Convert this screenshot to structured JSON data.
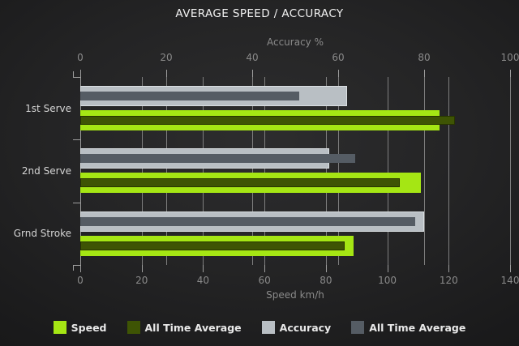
{
  "title": "AVERAGE SPEED / ACCURACY",
  "chart_data": {
    "type": "bar",
    "orientation": "horizontal",
    "title": "AVERAGE SPEED / ACCURACY",
    "categories": [
      "1st Serve",
      "2nd Serve",
      "Grnd Stroke"
    ],
    "axes": {
      "top": {
        "label": "Accuracy %",
        "range": [
          0,
          100
        ],
        "ticks": [
          0,
          20,
          40,
          60,
          80,
          100
        ]
      },
      "bottom": {
        "label": "Speed km/h",
        "range": [
          0,
          140
        ],
        "ticks": [
          0,
          20,
          40,
          60,
          80,
          100,
          120,
          140
        ]
      }
    },
    "grid": true,
    "legend_position": "bottom",
    "series": [
      {
        "name": "Speed",
        "axis": "bottom",
        "color": "#a5e614",
        "values": [
          117,
          111,
          89
        ]
      },
      {
        "name": "All Time Average",
        "axis": "bottom",
        "color": "#3e5404",
        "values": [
          122,
          104,
          86
        ]
      },
      {
        "name": "Accuracy",
        "axis": "top",
        "color": "#b9bfc4",
        "values": [
          62,
          58,
          80
        ]
      },
      {
        "name": "All Time Average",
        "axis": "top",
        "color": "#555c64",
        "values": [
          51,
          64,
          78
        ]
      }
    ]
  },
  "theme": {
    "background_center": "#2d2d2e",
    "background_edge": "#151516",
    "grid_color": "#7e7e7e",
    "axis_color": "#9d9d9d",
    "muted_text_color": "#8a8a8a",
    "category_text_color": "#d5d5d5",
    "title_color": "#f1f1f1",
    "legend_text_color": "#e9e9e9"
  }
}
